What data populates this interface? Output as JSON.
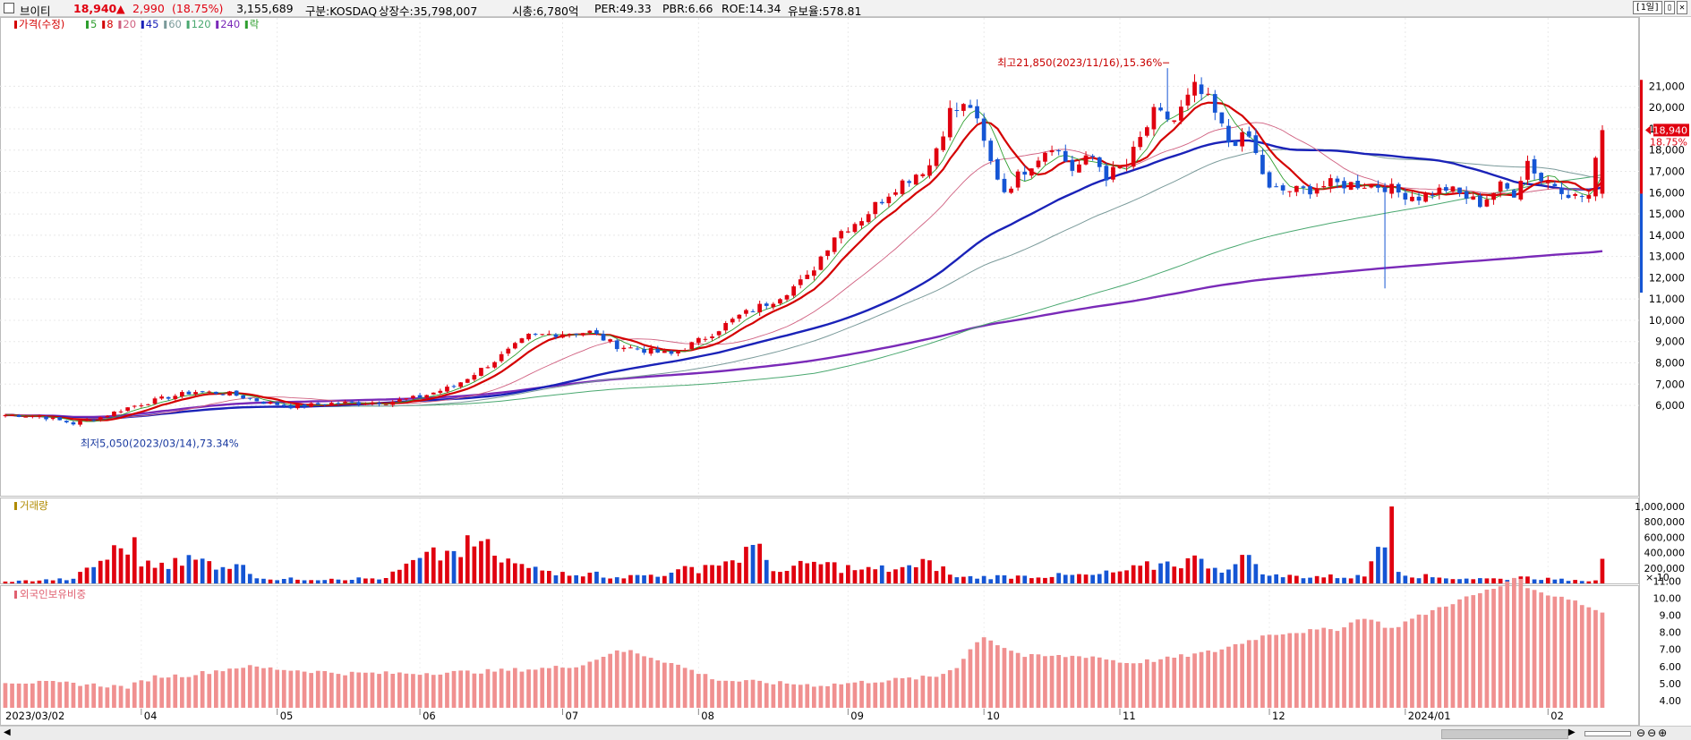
{
  "header": {
    "name": "브이티",
    "price": "18,940",
    "change_arrow": "▲",
    "change": "2,990",
    "change_pct": "(18.75%)",
    "volume": "3,155,689",
    "market": "구분:KOSDAQ",
    "shares": "상장수:35,798,007",
    "mktcap": "시총:6,780억",
    "per": "PER:49.33",
    "pbr": "PBR:6.66",
    "roe": "ROE:14.34",
    "reserve": "유보율:578.81",
    "period_button": "[1일]",
    "colors": {
      "up": "#e0000f",
      "down": "#1555d4"
    }
  },
  "window_buttons": [
    "▯",
    "✕"
  ],
  "price_legend": [
    {
      "label": "가격(수정)",
      "color": "#d40000"
    },
    {
      "label": "5",
      "color": "#2e9e2e"
    },
    {
      "label": "8",
      "color": "#d40000"
    },
    {
      "label": "20",
      "color": "#d06080"
    },
    {
      "label": "45",
      "color": "#1a22b8"
    },
    {
      "label": "60",
      "color": "#7a9a9a"
    },
    {
      "label": "120",
      "color": "#4aa870"
    },
    {
      "label": "240",
      "color": "#7a2ab8"
    },
    {
      "label": "락",
      "color": "#2e9e2e"
    }
  ],
  "annotations": {
    "high": "최고21,850(2023/11/16),15.36%",
    "low": "최저5,050(2023/03/14),73.34%"
  },
  "volume_label": "거래량",
  "volume_unit": "× 10",
  "foreign_label": "외국인보유비중",
  "bottom_bar": {
    "left": "◀",
    "right": "▶",
    "zoom": [
      "⊖",
      "⊖",
      "⊕"
    ]
  },
  "chart_data": {
    "type": "candlestick",
    "price_axis": {
      "ticks": [
        6000,
        7000,
        8000,
        9000,
        10000,
        11000,
        12000,
        13000,
        14000,
        15000,
        16000,
        17000,
        18000,
        19000,
        20000,
        21000
      ],
      "tick_labels": [
        "6,000",
        "7,000",
        "8,000",
        "9,000",
        "10,000",
        "11,000",
        "12,000",
        "13,000",
        "14,000",
        "15,000",
        "16,000",
        "17,000",
        "18,000",
        "19,000",
        "20,000",
        "21,000"
      ]
    },
    "volume_axis": {
      "ticks": [
        200000,
        400000,
        600000,
        800000,
        1000000
      ],
      "tick_labels": [
        "200,000",
        "400,000",
        "600,000",
        "800,000",
        "1,000,000"
      ]
    },
    "foreign_axis": {
      "ticks": [
        4,
        5,
        6,
        7,
        8,
        9,
        10,
        11
      ],
      "tick_labels": [
        "4.00",
        "5.00",
        "6.00",
        "7.00",
        "8.00",
        "9.00",
        "10.00",
        "11.00"
      ]
    },
    "x_labels": [
      {
        "label": "2023/03/02",
        "i": 0
      },
      {
        "label": "04",
        "i": 20
      },
      {
        "label": "05",
        "i": 40
      },
      {
        "label": "06",
        "i": 61
      },
      {
        "label": "07",
        "i": 82
      },
      {
        "label": "08",
        "i": 102
      },
      {
        "label": "09",
        "i": 124
      },
      {
        "label": "10",
        "i": 144
      },
      {
        "label": "11",
        "i": 164
      },
      {
        "label": "12",
        "i": 186
      },
      {
        "label": "2024/01",
        "i": 206
      },
      {
        "label": "02",
        "i": 227
      }
    ],
    "current_price": {
      "value": 18940,
      "label": "18,940",
      "pct": "18.75%"
    },
    "close_keypoints": [
      [
        0,
        5550
      ],
      [
        5,
        5500
      ],
      [
        10,
        5150
      ],
      [
        14,
        5450
      ],
      [
        18,
        5900
      ],
      [
        24,
        6400
      ],
      [
        28,
        6650
      ],
      [
        33,
        6550
      ],
      [
        38,
        6150
      ],
      [
        42,
        5950
      ],
      [
        48,
        6100
      ],
      [
        56,
        6150
      ],
      [
        61,
        6400
      ],
      [
        66,
        6900
      ],
      [
        72,
        8100
      ],
      [
        77,
        9250
      ],
      [
        82,
        9400
      ],
      [
        86,
        9450
      ],
      [
        90,
        8800
      ],
      [
        98,
        8400
      ],
      [
        103,
        9200
      ],
      [
        108,
        10200
      ],
      [
        113,
        10950
      ],
      [
        118,
        12000
      ],
      [
        122,
        14000
      ],
      [
        126,
        14800
      ],
      [
        131,
        16300
      ],
      [
        136,
        17300
      ],
      [
        139,
        19800
      ],
      [
        142,
        20100
      ],
      [
        145,
        17400
      ],
      [
        147,
        16100
      ],
      [
        150,
        17100
      ],
      [
        154,
        18300
      ],
      [
        157,
        17100
      ],
      [
        160,
        17700
      ],
      [
        162,
        16800
      ],
      [
        165,
        17300
      ],
      [
        169,
        19700
      ],
      [
        172,
        19400
      ],
      [
        175,
        20900
      ],
      [
        177,
        20300
      ],
      [
        180,
        18400
      ],
      [
        183,
        18600
      ],
      [
        186,
        16100
      ],
      [
        191,
        16100
      ],
      [
        195,
        16400
      ],
      [
        200,
        16400
      ],
      [
        203,
        16300
      ],
      [
        205,
        16000
      ],
      [
        208,
        15800
      ],
      [
        212,
        16200
      ],
      [
        217,
        15500
      ],
      [
        220,
        16300
      ],
      [
        222,
        16000
      ],
      [
        224,
        17500
      ],
      [
        226,
        16600
      ],
      [
        228,
        16400
      ],
      [
        231,
        15800
      ],
      [
        233,
        15850
      ],
      [
        235,
        18940
      ]
    ],
    "high_point": {
      "i": 171,
      "value": 21850
    },
    "low_point": {
      "i": 10,
      "value": 5050
    },
    "volume_keypoints": [
      [
        0,
        25000
      ],
      [
        10,
        60000
      ],
      [
        19,
        600000
      ],
      [
        20,
        220000
      ],
      [
        25,
        330000
      ],
      [
        34,
        250000
      ],
      [
        38,
        60000
      ],
      [
        48,
        60000
      ],
      [
        56,
        70000
      ],
      [
        61,
        330000
      ],
      [
        66,
        420000
      ],
      [
        70,
        550000
      ],
      [
        72,
        360000
      ],
      [
        77,
        200000
      ],
      [
        82,
        150000
      ],
      [
        86,
        140000
      ],
      [
        90,
        80000
      ],
      [
        98,
        140000
      ],
      [
        103,
        240000
      ],
      [
        107,
        300000
      ],
      [
        110,
        500000
      ],
      [
        114,
        150000
      ],
      [
        119,
        280000
      ],
      [
        126,
        180000
      ],
      [
        134,
        210000
      ],
      [
        136,
        300000
      ],
      [
        140,
        80000
      ],
      [
        150,
        100000
      ],
      [
        160,
        110000
      ],
      [
        165,
        170000
      ],
      [
        170,
        260000
      ],
      [
        176,
        320000
      ],
      [
        180,
        180000
      ],
      [
        183,
        370000
      ],
      [
        186,
        100000
      ],
      [
        200,
        90000
      ],
      [
        204,
        1000000
      ],
      [
        205,
        150000
      ],
      [
        210,
        80000
      ],
      [
        220,
        60000
      ],
      [
        224,
        90000
      ],
      [
        228,
        50000
      ],
      [
        234,
        40000
      ],
      [
        235,
        320000
      ]
    ],
    "foreign_keypoints": [
      [
        0,
        5.1
      ],
      [
        10,
        5.0
      ],
      [
        18,
        4.8
      ],
      [
        22,
        5.4
      ],
      [
        27,
        5.5
      ],
      [
        35,
        6.0
      ],
      [
        42,
        5.8
      ],
      [
        50,
        5.6
      ],
      [
        60,
        5.6
      ],
      [
        70,
        5.7
      ],
      [
        80,
        5.9
      ],
      [
        85,
        6.1
      ],
      [
        89,
        6.8
      ],
      [
        92,
        6.9
      ],
      [
        98,
        6.2
      ],
      [
        105,
        5.2
      ],
      [
        115,
        5.0
      ],
      [
        120,
        4.9
      ],
      [
        130,
        5.2
      ],
      [
        137,
        5.4
      ],
      [
        140,
        6.0
      ],
      [
        142,
        7.0
      ],
      [
        144,
        7.8
      ],
      [
        146,
        7.3
      ],
      [
        150,
        6.6
      ],
      [
        160,
        6.6
      ],
      [
        165,
        6.2
      ],
      [
        170,
        6.4
      ],
      [
        178,
        6.9
      ],
      [
        186,
        7.9
      ],
      [
        196,
        8.2
      ],
      [
        200,
        8.9
      ],
      [
        204,
        8.2
      ],
      [
        206,
        8.6
      ],
      [
        212,
        9.6
      ],
      [
        220,
        10.7
      ],
      [
        222,
        11.3
      ],
      [
        225,
        10.4
      ],
      [
        230,
        10.0
      ],
      [
        234,
        9.3
      ],
      [
        235,
        9.2
      ]
    ]
  }
}
